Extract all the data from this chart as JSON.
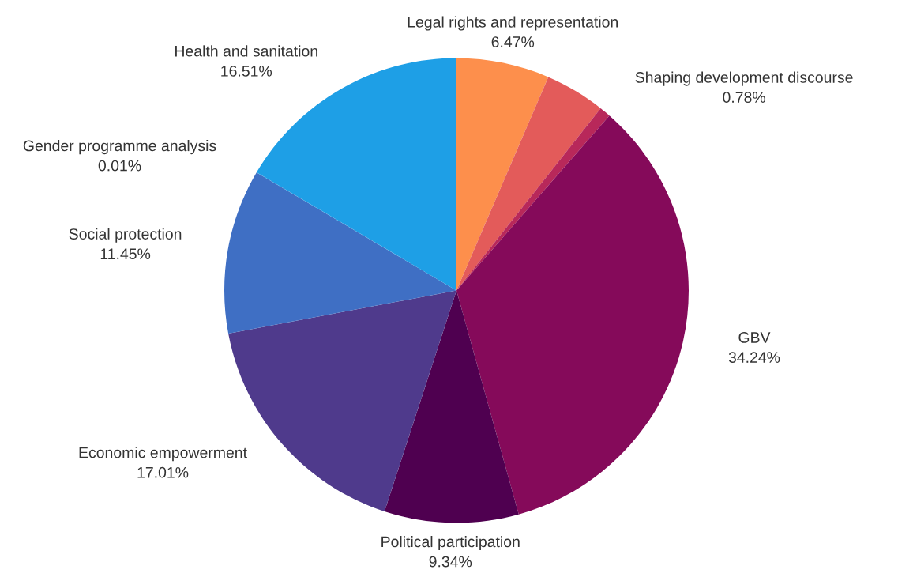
{
  "chart_data": {
    "type": "pie",
    "categories": [
      "Legal rights and representation",
      null,
      "Shaping development discourse",
      "GBV",
      "Political participation",
      "Economic empowerment",
      "Social protection",
      "Gender programme analysis",
      "Health and sanitation"
    ],
    "values": [
      6.47,
      4.19,
      0.78,
      34.24,
      9.34,
      17.01,
      11.45,
      0.01,
      16.51
    ],
    "value_labels": [
      "6.47%",
      null,
      "0.78%",
      "34.24%",
      "9.34%",
      "17.01%",
      "11.45%",
      "0.01%",
      "16.51%"
    ],
    "colors": [
      "#fd8f4c",
      "#e35b5a",
      "#b8285a",
      "#850a5a",
      "#4f0050",
      "#4f3a8c",
      "#3f6fc4",
      "#2a8ad8",
      "#1e9fe6"
    ]
  }
}
